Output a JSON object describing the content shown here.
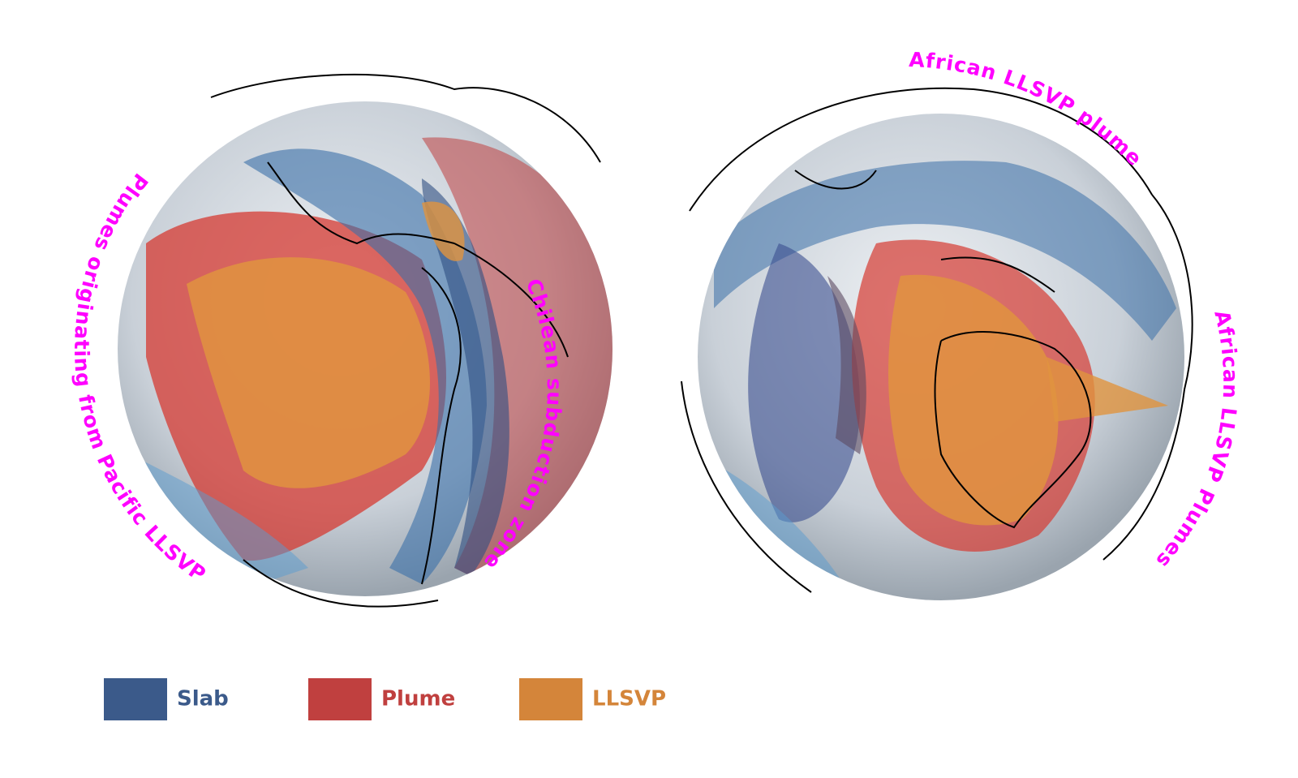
{
  "globes": [
    {
      "annotations": [
        "Plumes   originating   from   Pacific   LLSVP",
        "Chilean subduction zone"
      ]
    },
    {
      "annotations": [
        "African LLSVP plume",
        "African LLSVP Plumes"
      ]
    }
  ],
  "legend": [
    {
      "label": "Slab",
      "color": "#3b5a8a"
    },
    {
      "label": "Plume",
      "color": "#c0403f"
    },
    {
      "label": "LLSVP",
      "color": "#d4853a"
    }
  ]
}
